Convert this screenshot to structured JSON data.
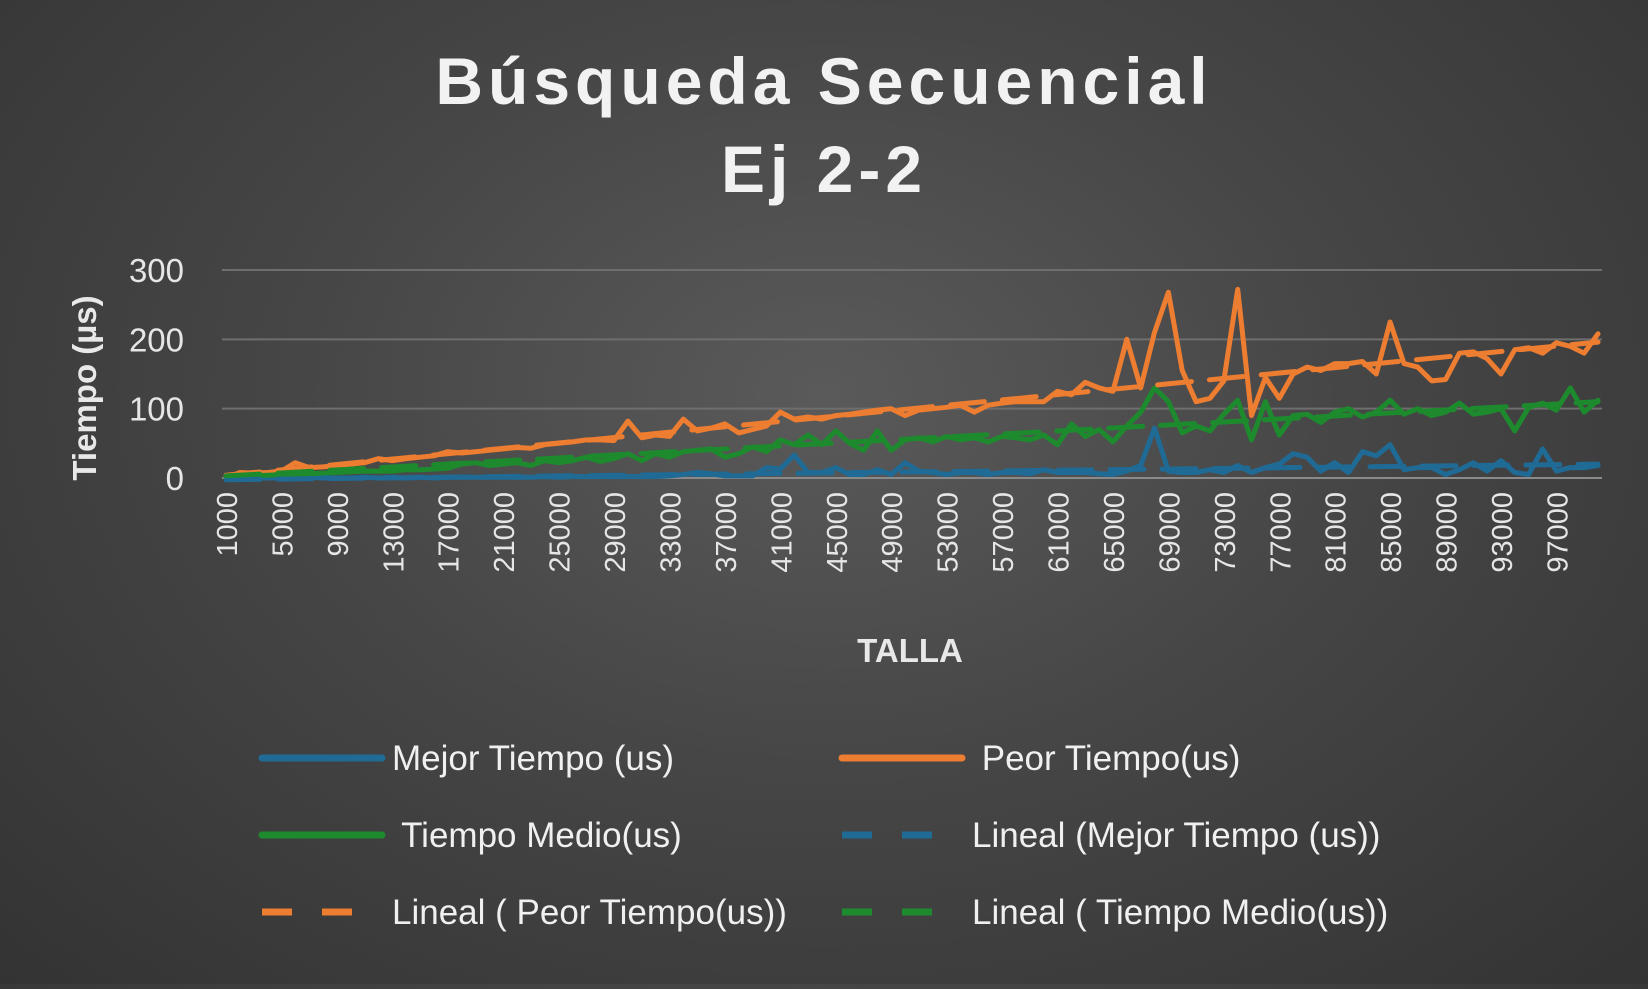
{
  "chart_data": {
    "type": "line",
    "title": "Búsqueda Secuencial",
    "subtitle": "Ej 2-2",
    "xlabel": "TALLA",
    "ylabel": "Tiempo (µs)",
    "ylim": [
      0,
      300
    ],
    "yticks": [
      0,
      100,
      200,
      300
    ],
    "grid": true,
    "legend_position": "bottom",
    "x_step": 1000,
    "x_tick_labels": [
      "1000",
      "5000",
      "9000",
      "13000",
      "17000",
      "21000",
      "25000",
      "29000",
      "33000",
      "37000",
      "41000",
      "45000",
      "49000",
      "53000",
      "57000",
      "61000",
      "65000",
      "69000",
      "73000",
      "77000",
      "81000",
      "85000",
      "89000",
      "93000",
      "97000"
    ],
    "x": [
      1000,
      2000,
      3000,
      4000,
      5000,
      6000,
      7000,
      8000,
      9000,
      10000,
      11000,
      12000,
      13000,
      14000,
      15000,
      16000,
      17000,
      18000,
      19000,
      20000,
      21000,
      22000,
      23000,
      24000,
      25000,
      26000,
      27000,
      28000,
      29000,
      30000,
      31000,
      32000,
      33000,
      34000,
      35000,
      36000,
      37000,
      38000,
      39000,
      40000,
      41000,
      42000,
      43000,
      44000,
      45000,
      46000,
      47000,
      48000,
      49000,
      50000,
      51000,
      52000,
      53000,
      54000,
      55000,
      56000,
      57000,
      58000,
      59000,
      60000,
      61000,
      62000,
      63000,
      64000,
      65000,
      66000,
      67000,
      68000,
      69000,
      70000,
      71000,
      72000,
      73000,
      74000,
      75000,
      76000,
      77000,
      78000,
      79000,
      80000,
      81000,
      82000,
      83000,
      84000,
      85000,
      86000,
      87000,
      88000,
      89000,
      90000,
      91000,
      92000,
      93000,
      94000,
      95000,
      96000,
      97000,
      98000,
      99000,
      100000
    ],
    "series": [
      {
        "name": "Mejor Tiempo (us)",
        "color": "#1f6b96",
        "style": "solid",
        "values": [
          0,
          0,
          0,
          0,
          0,
          0,
          1,
          0,
          0,
          0,
          1,
          0,
          1,
          0,
          1,
          0,
          1,
          1,
          1,
          1,
          1,
          1,
          1,
          2,
          1,
          2,
          2,
          2,
          2,
          2,
          2,
          2,
          3,
          5,
          8,
          6,
          3,
          3,
          3,
          15,
          13,
          33,
          8,
          8,
          15,
          5,
          5,
          12,
          5,
          22,
          10,
          8,
          5,
          8,
          8,
          5,
          8,
          8,
          6,
          12,
          8,
          8,
          8,
          6,
          5,
          10,
          18,
          72,
          10,
          8,
          8,
          12,
          8,
          18,
          8,
          15,
          20,
          35,
          30,
          10,
          22,
          8,
          38,
          32,
          48,
          12,
          15,
          15,
          5,
          12,
          22,
          10,
          25,
          8,
          5,
          42,
          10,
          15,
          15,
          18
        ]
      },
      {
        "name": " Peor Tiempo(us)",
        "color": "#ed7d31",
        "style": "solid",
        "values": [
          0,
          8,
          7,
          8,
          10,
          22,
          15,
          16,
          18,
          20,
          22,
          28,
          25,
          28,
          30,
          32,
          38,
          36,
          38,
          40,
          42,
          44,
          43,
          48,
          50,
          52,
          55,
          55,
          54,
          82,
          58,
          62,
          60,
          85,
          68,
          72,
          78,
          65,
          70,
          75,
          95,
          85,
          88,
          85,
          90,
          92,
          95,
          98,
          100,
          90,
          98,
          100,
          102,
          105,
          95,
          105,
          108,
          110,
          110,
          110,
          125,
          120,
          138,
          130,
          125,
          200,
          130,
          210,
          268,
          155,
          110,
          115,
          140,
          272,
          90,
          145,
          115,
          150,
          160,
          155,
          165,
          165,
          168,
          150,
          225,
          165,
          160,
          140,
          142,
          180,
          182,
          172,
          150,
          185,
          188,
          180,
          195,
          190,
          180,
          208
        ]
      },
      {
        "name": " Tiempo Medio(us)",
        "color": "#1e8a2e",
        "style": "solid",
        "values": [
          0,
          2,
          3,
          4,
          5,
          5,
          6,
          7,
          8,
          9,
          10,
          10,
          10,
          12,
          12,
          13,
          14,
          20,
          22,
          18,
          20,
          22,
          18,
          25,
          22,
          25,
          30,
          24,
          28,
          35,
          25,
          35,
          30,
          38,
          40,
          42,
          30,
          35,
          45,
          38,
          55,
          48,
          62,
          48,
          68,
          50,
          40,
          68,
          40,
          55,
          58,
          52,
          60,
          55,
          58,
          52,
          60,
          58,
          55,
          62,
          48,
          78,
          60,
          70,
          52,
          75,
          95,
          130,
          110,
          65,
          75,
          68,
          92,
          112,
          55,
          110,
          62,
          90,
          92,
          80,
          95,
          100,
          88,
          95,
          112,
          92,
          100,
          90,
          95,
          108,
          92,
          95,
          100,
          68,
          102,
          108,
          98,
          130,
          95,
          112
        ]
      },
      {
        "name": "Lineal (Mejor Tiempo (us))",
        "color": "#1f6b96",
        "style": "dashed",
        "trend": [
          -2.5,
          20.0
        ]
      },
      {
        "name": "Lineal ( Peor Tiempo(us))",
        "color": "#ed7d31",
        "style": "dashed",
        "trend": [
          4.0,
          196.0
        ]
      },
      {
        "name": "Lineal ( Tiempo Medio(us))",
        "color": "#1e8a2e",
        "style": "dashed",
        "trend": [
          3.0,
          110.0
        ]
      }
    ]
  }
}
